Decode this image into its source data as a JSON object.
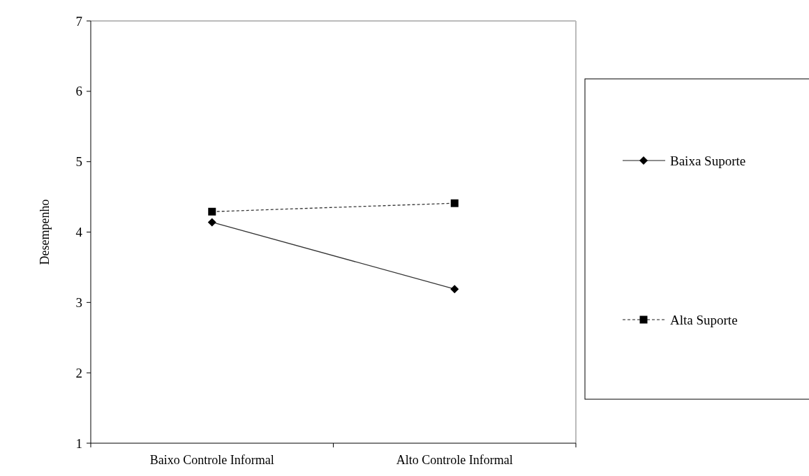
{
  "chart_data": {
    "type": "line",
    "ylabel": "Desempenho",
    "categories": [
      "Baixo Controle Informal",
      "Alto Controle Informal"
    ],
    "ylim": [
      1,
      7
    ],
    "yticks": [
      1,
      2,
      3,
      4,
      5,
      6,
      7
    ],
    "grid": false,
    "legend": "right",
    "series": [
      {
        "name": "Baixa Suporte",
        "color": "#000000",
        "values": [
          4.14,
          3.19
        ],
        "marker": "diamond",
        "line_style": "solid"
      },
      {
        "name": "Alta Suporte",
        "color": "#000000",
        "values": [
          4.29,
          4.41
        ],
        "marker": "square",
        "line_style": "dashed"
      }
    ]
  }
}
